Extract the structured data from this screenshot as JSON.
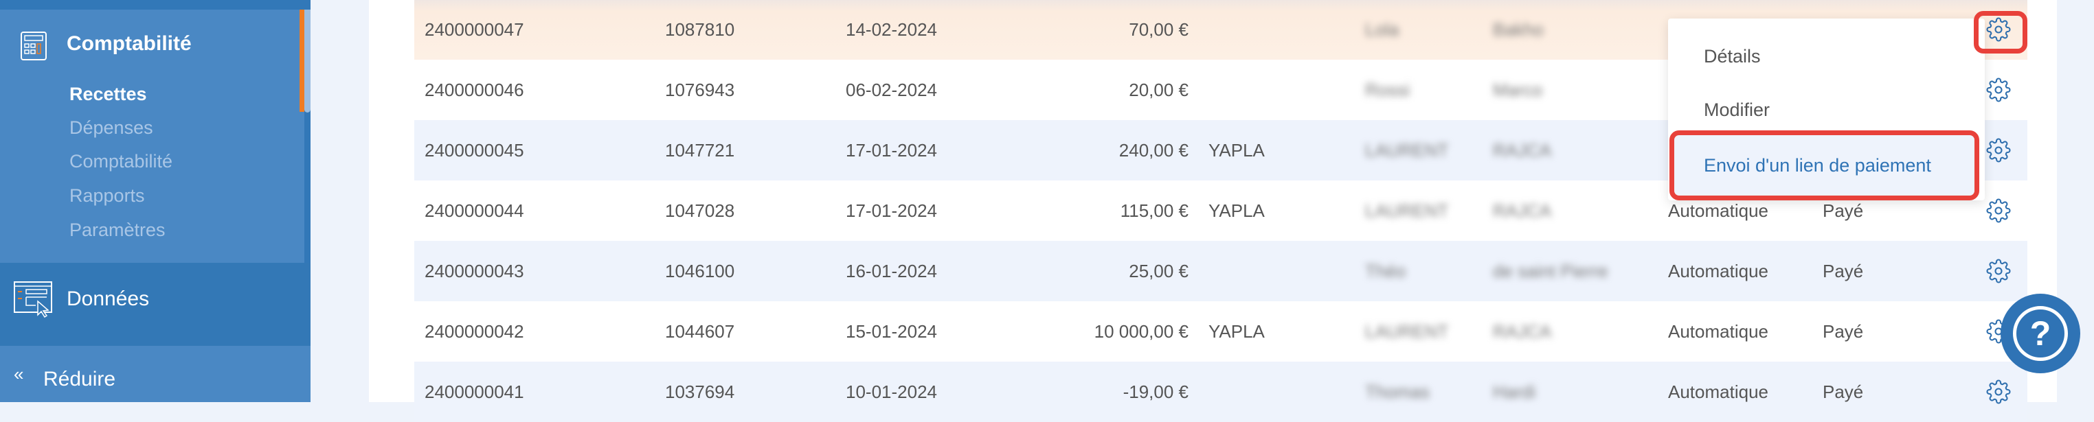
{
  "sidebar": {
    "section": "Comptabilité",
    "items": [
      {
        "label": "Recettes",
        "active": true
      },
      {
        "label": "Dépenses"
      },
      {
        "label": "Comptabilité"
      },
      {
        "label": "Rapports"
      },
      {
        "label": "Paramètres"
      }
    ],
    "data_section": "Données",
    "collapse_icon": "«",
    "collapse": "Réduire"
  },
  "table": {
    "rows": [
      {
        "id": "2400000047",
        "num": "1087810",
        "date": "14-02-2024",
        "amount": "70,00 €",
        "method": "",
        "first": "Lola",
        "last": "Bakho",
        "mode": "",
        "status": "",
        "highlighted": true
      },
      {
        "id": "2400000046",
        "num": "1076943",
        "date": "06-02-2024",
        "amount": "20,00 €",
        "method": "",
        "first": "Rossi",
        "last": "Marco",
        "mode": "",
        "status": ""
      },
      {
        "id": "2400000045",
        "num": "1047721",
        "date": "17-01-2024",
        "amount": "240,00 €",
        "method": "YAPLA",
        "first": "LAURENT",
        "last": "RAJCA",
        "mode": "",
        "status": ""
      },
      {
        "id": "2400000044",
        "num": "1047028",
        "date": "17-01-2024",
        "amount": "115,00 €",
        "method": "YAPLA",
        "first": "LAURENT",
        "last": "RAJCA",
        "mode": "Automatique",
        "status": "Payé"
      },
      {
        "id": "2400000043",
        "num": "1046100",
        "date": "16-01-2024",
        "amount": "25,00 €",
        "method": "",
        "first": "Théo",
        "last": "de saint Pierre",
        "mode": "Automatique",
        "status": "Payé"
      },
      {
        "id": "2400000042",
        "num": "1044607",
        "date": "15-01-2024",
        "amount": "10 000,00 €",
        "method": "YAPLA",
        "first": "LAURENT",
        "last": "RAJCA",
        "mode": "Automatique",
        "status": "Payé"
      },
      {
        "id": "2400000041",
        "num": "1037694",
        "date": "10-01-2024",
        "amount": "-19,00 €",
        "method": "",
        "first": "Thomas",
        "last": "Hardi",
        "mode": "Automatique",
        "status": "Payé"
      }
    ]
  },
  "menu": {
    "items": [
      "Détails",
      "Modifier",
      "Envoi d'un lien de paiement"
    ]
  },
  "help": "?",
  "colors": {
    "sidebar": "#3278b8",
    "accent": "#f07c22",
    "link": "#2f73b5",
    "highlight": "#e8413a"
  }
}
